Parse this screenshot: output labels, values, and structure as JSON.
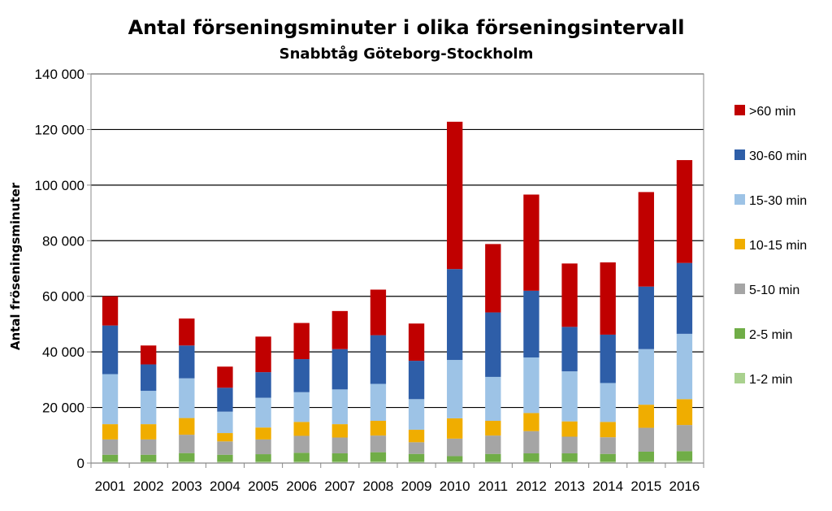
{
  "chart_data": {
    "type": "bar",
    "stacked": true,
    "title": "Antal förseningsminuter  i olika förseningsintervall",
    "subtitle": "Snabbtåg Göteborg-Stockholm",
    "xlabel": "",
    "ylabel": "Antal fröseningsminuter",
    "ylim": [
      0,
      140000
    ],
    "yticks": [
      0,
      20000,
      40000,
      60000,
      80000,
      100000,
      120000,
      140000
    ],
    "ytick_labels": [
      "0",
      "20 000",
      "40 000",
      "60 000",
      "80 000",
      "100 000",
      "120 000",
      "140 000"
    ],
    "grid": true,
    "legend": "right",
    "categories": [
      "2001",
      "2002",
      "2003",
      "2004",
      "2005",
      "2006",
      "2007",
      "2008",
      "2009",
      "2010",
      "2011",
      "2012",
      "2013",
      "2014",
      "2015",
      "2016"
    ],
    "series": [
      {
        "name": "1-2 min",
        "color": "#a9d18e",
        "values": [
          500,
          500,
          600,
          500,
          500,
          500,
          500,
          600,
          500,
          500,
          500,
          500,
          500,
          500,
          600,
          800
        ]
      },
      {
        "name": "2-5 min",
        "color": "#70ad47",
        "values": [
          2500,
          2500,
          3000,
          2500,
          2700,
          3200,
          3000,
          3300,
          2800,
          2000,
          2800,
          3000,
          3000,
          2800,
          3500,
          3500
        ]
      },
      {
        "name": "5-10 min",
        "color": "#a5a5a5",
        "values": [
          5500,
          5500,
          6600,
          4800,
          5300,
          6100,
          5700,
          6000,
          4200,
          6300,
          6600,
          8000,
          6000,
          6000,
          8600,
          9400
        ]
      },
      {
        "name": "10-15 min",
        "color": "#f0ad00",
        "values": [
          5500,
          5500,
          6000,
          3000,
          4300,
          5000,
          4800,
          5300,
          4500,
          7300,
          5300,
          6500,
          5500,
          5500,
          8300,
          9300
        ]
      },
      {
        "name": "15-30 min",
        "color": "#9dc3e6",
        "values": [
          18000,
          12000,
          14300,
          7700,
          10700,
          10700,
          12500,
          13300,
          11000,
          21000,
          15800,
          20000,
          18000,
          14000,
          20000,
          23500
        ]
      },
      {
        "name": "30-60 min",
        "color": "#2e5ea8",
        "values": [
          17500,
          9500,
          11800,
          8600,
          9200,
          11900,
          14500,
          17500,
          13800,
          32700,
          23200,
          24000,
          16000,
          17400,
          22500,
          25500
        ]
      },
      {
        "name": ">60 min",
        "color": "#c00000",
        "values": [
          10500,
          6800,
          9700,
          7600,
          12800,
          13000,
          13700,
          16400,
          13400,
          53000,
          24600,
          34600,
          22800,
          26000,
          34000,
          37000
        ]
      }
    ]
  }
}
